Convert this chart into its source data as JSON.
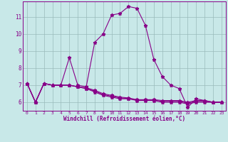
{
  "xlabel": "Windchill (Refroidissement éolien,°C)",
  "x": [
    0,
    1,
    2,
    3,
    4,
    5,
    6,
    7,
    8,
    9,
    10,
    11,
    12,
    13,
    14,
    15,
    16,
    17,
    18,
    19,
    20,
    21,
    22,
    23
  ],
  "y_main": [
    7.1,
    6.0,
    7.1,
    7.0,
    7.0,
    8.6,
    7.0,
    6.9,
    9.5,
    10.0,
    11.1,
    11.2,
    11.6,
    11.5,
    10.5,
    8.5,
    7.5,
    7.0,
    6.8,
    5.7,
    6.2,
    6.1,
    6.0,
    6.0
  ],
  "y_flat1": [
    7.1,
    6.0,
    7.1,
    7.0,
    7.0,
    7.0,
    6.9,
    6.8,
    6.6,
    6.4,
    6.3,
    6.2,
    6.2,
    6.1,
    6.1,
    6.1,
    6.0,
    6.0,
    6.0,
    5.9,
    6.0,
    6.0,
    6.0,
    6.0
  ],
  "y_flat2": [
    7.1,
    6.0,
    7.1,
    7.0,
    7.0,
    7.0,
    6.9,
    6.8,
    6.65,
    6.45,
    6.35,
    6.25,
    6.22,
    6.12,
    6.12,
    6.12,
    6.05,
    6.05,
    6.05,
    5.95,
    6.05,
    6.05,
    6.0,
    6.0
  ],
  "y_flat3": [
    7.1,
    6.0,
    7.1,
    7.0,
    7.0,
    7.0,
    6.9,
    6.85,
    6.7,
    6.5,
    6.4,
    6.3,
    6.25,
    6.15,
    6.15,
    6.15,
    6.1,
    6.1,
    6.1,
    6.0,
    6.1,
    6.1,
    6.0,
    6.0
  ],
  "line_color": "#880088",
  "bg_color": "#c8e8e8",
  "plot_bg": "#c8e8e8",
  "grid_color": "#99bbbb",
  "ylim": [
    5.5,
    11.9
  ],
  "xlim": [
    -0.5,
    23.5
  ],
  "yticks": [
    6,
    7,
    8,
    9,
    10,
    11
  ],
  "xticks": [
    0,
    1,
    2,
    3,
    4,
    5,
    6,
    7,
    8,
    9,
    10,
    11,
    12,
    13,
    14,
    15,
    16,
    17,
    18,
    19,
    20,
    21,
    22,
    23
  ],
  "marker": "*",
  "markersize": 3.5,
  "linewidth": 0.8
}
